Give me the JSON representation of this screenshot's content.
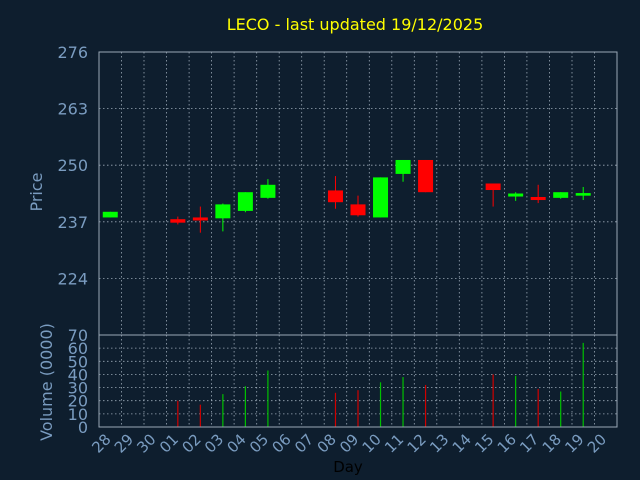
{
  "chart_data": [
    {
      "type": "candlestick",
      "title": "LECO - last updated 19/12/2025",
      "ylabel": "Price",
      "ylim": [
        211,
        276
      ],
      "yticks": [
        224,
        237,
        250,
        263,
        276
      ],
      "grid": true,
      "x": [
        "28",
        "29",
        "30",
        "01",
        "02",
        "03",
        "04",
        "05",
        "06",
        "07",
        "08",
        "09",
        "10",
        "11",
        "12",
        "13",
        "14",
        "15",
        "16",
        "17",
        "18",
        "19",
        "20"
      ],
      "candles": [
        {
          "x": "28",
          "open": 238.0,
          "close": 239.3,
          "high": 239.3,
          "low": 238.0
        },
        {
          "x": "01",
          "open": 237.6,
          "close": 236.8,
          "high": 238.2,
          "low": 236.4
        },
        {
          "x": "02",
          "open": 238.0,
          "close": 237.3,
          "high": 240.5,
          "low": 234.5
        },
        {
          "x": "03",
          "open": 237.8,
          "close": 241.0,
          "high": 241.2,
          "low": 234.8
        },
        {
          "x": "04",
          "open": 239.5,
          "close": 243.8,
          "high": 243.8,
          "low": 239.2
        },
        {
          "x": "05",
          "open": 242.5,
          "close": 245.5,
          "high": 246.8,
          "low": 242.3
        },
        {
          "x": "08",
          "open": 244.2,
          "close": 241.5,
          "high": 247.5,
          "low": 240.0
        },
        {
          "x": "09",
          "open": 241.0,
          "close": 238.5,
          "high": 243.0,
          "low": 238.2
        },
        {
          "x": "10",
          "open": 238.0,
          "close": 247.2,
          "high": 247.2,
          "low": 238.0
        },
        {
          "x": "11",
          "open": 248.0,
          "close": 251.2,
          "high": 251.2,
          "low": 246.2
        },
        {
          "x": "12",
          "open": 251.2,
          "close": 243.8,
          "high": 251.2,
          "low": 243.8
        },
        {
          "x": "15",
          "open": 245.8,
          "close": 244.3,
          "high": 245.8,
          "low": 240.5
        },
        {
          "x": "16",
          "open": 242.8,
          "close": 243.5,
          "high": 243.8,
          "low": 241.8
        },
        {
          "x": "17",
          "open": 242.7,
          "close": 242.0,
          "high": 245.5,
          "low": 241.3
        },
        {
          "x": "18",
          "open": 242.5,
          "close": 243.8,
          "high": 243.8,
          "low": 242.3
        },
        {
          "x": "19",
          "open": 243.0,
          "close": 243.6,
          "high": 245.0,
          "low": 242.0
        }
      ]
    },
    {
      "type": "bar",
      "ylabel": "Volume (0000)",
      "xlabel": "Day",
      "ylim": [
        0,
        70
      ],
      "yticks": [
        0,
        10,
        20,
        30,
        40,
        50,
        60,
        70
      ],
      "grid": true,
      "categories": [
        "28",
        "29",
        "30",
        "01",
        "02",
        "03",
        "04",
        "05",
        "06",
        "07",
        "08",
        "09",
        "10",
        "11",
        "12",
        "13",
        "14",
        "15",
        "16",
        "17",
        "18",
        "19",
        "20"
      ],
      "bars": [
        {
          "x": "01",
          "value": 20,
          "dir": "down"
        },
        {
          "x": "02",
          "value": 17,
          "dir": "down"
        },
        {
          "x": "03",
          "value": 25,
          "dir": "up"
        },
        {
          "x": "04",
          "value": 31,
          "dir": "up"
        },
        {
          "x": "05",
          "value": 43,
          "dir": "up"
        },
        {
          "x": "08",
          "value": 26,
          "dir": "down"
        },
        {
          "x": "09",
          "value": 28,
          "dir": "down"
        },
        {
          "x": "10",
          "value": 34,
          "dir": "up"
        },
        {
          "x": "11",
          "value": 38,
          "dir": "up"
        },
        {
          "x": "12",
          "value": 32,
          "dir": "down"
        },
        {
          "x": "15",
          "value": 40,
          "dir": "down"
        },
        {
          "x": "16",
          "value": 39,
          "dir": "up"
        },
        {
          "x": "17",
          "value": 29,
          "dir": "down"
        },
        {
          "x": "18",
          "value": 27,
          "dir": "up"
        },
        {
          "x": "19",
          "value": 64,
          "dir": "up"
        }
      ]
    }
  ],
  "colors": {
    "background": "#0e1e2e",
    "title": "#ffff00",
    "axis_text": "#7a9cc0",
    "grid": "#9aa8b6",
    "up": "#00ff00",
    "down": "#ff0000",
    "volume_up": "#00c000",
    "volume_down": "#d00000"
  }
}
